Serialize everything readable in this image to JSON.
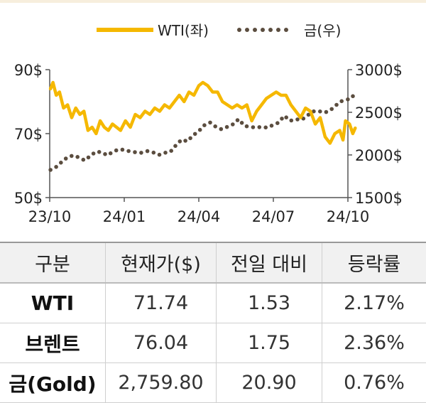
{
  "chart_data": {
    "type": "line",
    "legend_placement": "top-center",
    "x_ticks": [
      "23/10",
      "24/01",
      "24/04",
      "24/07",
      "24/10"
    ],
    "x_range": [
      "2023-10-01",
      "2024-10-01"
    ],
    "y_left": {
      "ticks": [
        "90$",
        "70$",
        "50$"
      ],
      "range": [
        50,
        90
      ]
    },
    "y_right": {
      "ticks": [
        "3000$",
        "2500$",
        "2000$",
        "1500$"
      ],
      "range": [
        1500,
        3000
      ]
    },
    "grid": false,
    "series": [
      {
        "name": "WTI(좌)",
        "axis": "left",
        "style": "solid",
        "color": "#f5b800",
        "points": [
          [
            "2023-10-02",
            84
          ],
          [
            "2023-10-05",
            86
          ],
          [
            "2023-10-09",
            82
          ],
          [
            "2023-10-13",
            83
          ],
          [
            "2023-10-18",
            78
          ],
          [
            "2023-10-23",
            79
          ],
          [
            "2023-10-28",
            75
          ],
          [
            "2023-11-02",
            78
          ],
          [
            "2023-11-07",
            76
          ],
          [
            "2023-11-12",
            77
          ],
          [
            "2023-11-17",
            71
          ],
          [
            "2023-11-22",
            72
          ],
          [
            "2023-11-27",
            70
          ],
          [
            "2023-12-02",
            74
          ],
          [
            "2023-12-07",
            72
          ],
          [
            "2023-12-12",
            71
          ],
          [
            "2023-12-17",
            73
          ],
          [
            "2023-12-22",
            72
          ],
          [
            "2023-12-27",
            71
          ],
          [
            "2024-01-02",
            74
          ],
          [
            "2024-01-08",
            72
          ],
          [
            "2024-01-14",
            76
          ],
          [
            "2024-01-20",
            75
          ],
          [
            "2024-01-26",
            77
          ],
          [
            "2024-02-01",
            76
          ],
          [
            "2024-02-07",
            78
          ],
          [
            "2024-02-13",
            77
          ],
          [
            "2024-02-19",
            79
          ],
          [
            "2024-02-25",
            78
          ],
          [
            "2024-03-02",
            80
          ],
          [
            "2024-03-08",
            82
          ],
          [
            "2024-03-14",
            80
          ],
          [
            "2024-03-20",
            83
          ],
          [
            "2024-03-26",
            82
          ],
          [
            "2024-04-01",
            85
          ],
          [
            "2024-04-06",
            86
          ],
          [
            "2024-04-12",
            85
          ],
          [
            "2024-04-18",
            83
          ],
          [
            "2024-04-24",
            83
          ],
          [
            "2024-04-30",
            80
          ],
          [
            "2024-05-06",
            79
          ],
          [
            "2024-05-12",
            78
          ],
          [
            "2024-05-18",
            79
          ],
          [
            "2024-05-24",
            78
          ],
          [
            "2024-05-30",
            79
          ],
          [
            "2024-06-05",
            74
          ],
          [
            "2024-06-11",
            77
          ],
          [
            "2024-06-17",
            79
          ],
          [
            "2024-06-23",
            81
          ],
          [
            "2024-06-29",
            82
          ],
          [
            "2024-07-05",
            83
          ],
          [
            "2024-07-11",
            82
          ],
          [
            "2024-07-17",
            82
          ],
          [
            "2024-07-23",
            79
          ],
          [
            "2024-07-29",
            77
          ],
          [
            "2024-08-04",
            75
          ],
          [
            "2024-08-10",
            78
          ],
          [
            "2024-08-16",
            77
          ],
          [
            "2024-08-22",
            73
          ],
          [
            "2024-08-28",
            75
          ],
          [
            "2024-09-03",
            69
          ],
          [
            "2024-09-09",
            67
          ],
          [
            "2024-09-15",
            70
          ],
          [
            "2024-09-21",
            71
          ],
          [
            "2024-09-25",
            68
          ],
          [
            "2024-09-28",
            74
          ],
          [
            "2024-10-03",
            73
          ],
          [
            "2024-10-07",
            70
          ],
          [
            "2024-10-10",
            71.74
          ]
        ]
      },
      {
        "name": "금(우)",
        "axis": "right",
        "style": "dotted",
        "color": "#5b4d3f",
        "points": [
          [
            "2023-10-02",
            1825
          ],
          [
            "2023-10-09",
            1860
          ],
          [
            "2023-10-16",
            1920
          ],
          [
            "2023-10-23",
            1975
          ],
          [
            "2023-10-30",
            1995
          ],
          [
            "2023-11-06",
            1970
          ],
          [
            "2023-11-13",
            1935
          ],
          [
            "2023-11-20",
            1990
          ],
          [
            "2023-11-27",
            2040
          ],
          [
            "2023-12-04",
            2030
          ],
          [
            "2023-12-11",
            1995
          ],
          [
            "2023-12-18",
            2040
          ],
          [
            "2023-12-25",
            2065
          ],
          [
            "2024-01-01",
            2060
          ],
          [
            "2024-01-08",
            2040
          ],
          [
            "2024-01-15",
            2030
          ],
          [
            "2024-01-22",
            2025
          ],
          [
            "2024-01-29",
            2045
          ],
          [
            "2024-02-05",
            2030
          ],
          [
            "2024-02-12",
            2000
          ],
          [
            "2024-02-19",
            2025
          ],
          [
            "2024-02-26",
            2035
          ],
          [
            "2024-03-04",
            2115
          ],
          [
            "2024-03-11",
            2180
          ],
          [
            "2024-03-18",
            2160
          ],
          [
            "2024-03-25",
            2230
          ],
          [
            "2024-04-01",
            2280
          ],
          [
            "2024-04-08",
            2350
          ],
          [
            "2024-04-15",
            2380
          ],
          [
            "2024-04-22",
            2330
          ],
          [
            "2024-04-29",
            2300
          ],
          [
            "2024-05-06",
            2330
          ],
          [
            "2024-05-13",
            2360
          ],
          [
            "2024-05-20",
            2420
          ],
          [
            "2024-05-27",
            2340
          ],
          [
            "2024-06-03",
            2330
          ],
          [
            "2024-06-10",
            2320
          ],
          [
            "2024-06-17",
            2330
          ],
          [
            "2024-06-24",
            2320
          ],
          [
            "2024-07-01",
            2350
          ],
          [
            "2024-07-08",
            2380
          ],
          [
            "2024-07-15",
            2460
          ],
          [
            "2024-07-22",
            2400
          ],
          [
            "2024-07-29",
            2420
          ],
          [
            "2024-08-05",
            2410
          ],
          [
            "2024-08-12",
            2460
          ],
          [
            "2024-08-19",
            2510
          ],
          [
            "2024-08-26",
            2515
          ],
          [
            "2024-09-02",
            2495
          ],
          [
            "2024-09-09",
            2520
          ],
          [
            "2024-09-16",
            2580
          ],
          [
            "2024-09-23",
            2630
          ],
          [
            "2024-09-30",
            2650
          ],
          [
            "2024-10-05",
            2660
          ],
          [
            "2024-10-10",
            2730
          ]
        ]
      }
    ]
  },
  "table": {
    "headers": [
      "구분",
      "현재가($)",
      "전일 대비",
      "등락률"
    ],
    "rows": [
      {
        "name": "WTI",
        "price": "71.74",
        "change": "1.53",
        "rate": "2.17%"
      },
      {
        "name": "브렌트",
        "price": "76.04",
        "change": "1.75",
        "rate": "2.36%"
      },
      {
        "name": "금(Gold)",
        "price": "2,759.80",
        "change": "20.90",
        "rate": "0.76%"
      }
    ]
  }
}
